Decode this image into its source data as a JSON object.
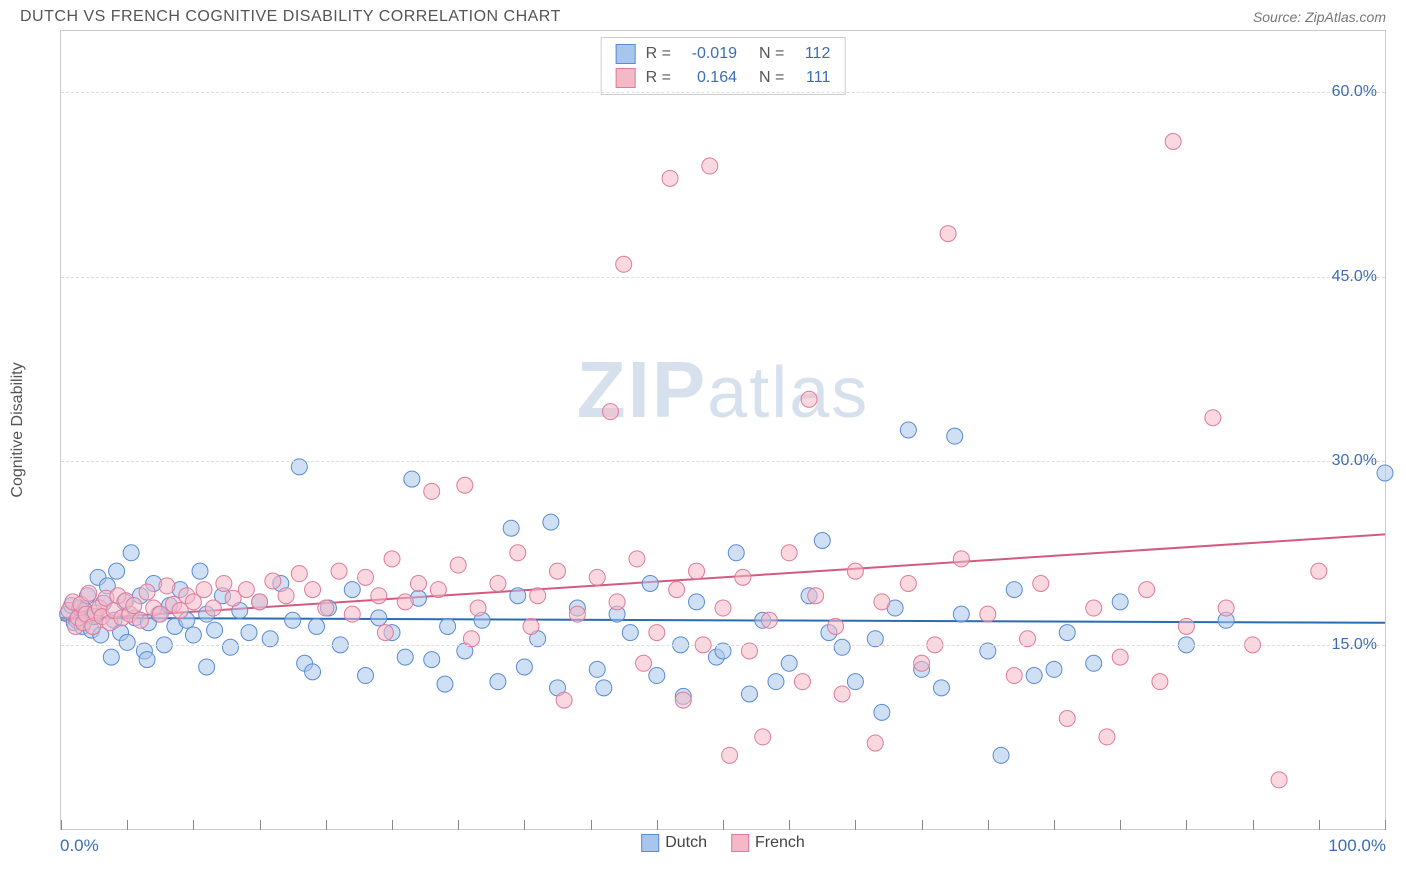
{
  "title": "DUTCH VS FRENCH COGNITIVE DISABILITY CORRELATION CHART",
  "source": "Source: ZipAtlas.com",
  "watermark": "ZIPatlas",
  "y_axis_label": "Cognitive Disability",
  "chart": {
    "type": "scatter",
    "xlim": [
      0,
      100
    ],
    "ylim": [
      0,
      65
    ],
    "x_min_label": "0.0%",
    "x_max_label": "100.0%",
    "x_ticks": [
      0,
      5,
      10,
      15,
      20,
      25,
      30,
      35,
      40,
      45,
      50,
      55,
      60,
      65,
      70,
      75,
      80,
      85,
      90,
      95,
      100
    ],
    "y_gridlines": [
      15,
      30,
      45,
      60
    ],
    "y_tick_labels": [
      "15.0%",
      "30.0%",
      "45.0%",
      "60.0%"
    ],
    "background_color": "#ffffff",
    "grid_color": "#dddddd",
    "marker_radius": 8,
    "marker_opacity": 0.55,
    "trend_line_width": 2,
    "series": [
      {
        "name": "Dutch",
        "fill": "#a8c6eb",
        "stroke": "#5a8bd4",
        "line_color": "#2b6cb0",
        "R": "-0.019",
        "N": "112",
        "trend": {
          "y_at_x0": 17.2,
          "y_at_x100": 16.8
        },
        "points": [
          [
            0.5,
            17.5
          ],
          [
            0.8,
            18.2
          ],
          [
            1.0,
            16.8
          ],
          [
            1.2,
            17.0
          ],
          [
            1.4,
            18.0
          ],
          [
            1.6,
            16.5
          ],
          [
            1.8,
            17.8
          ],
          [
            2.0,
            19.0
          ],
          [
            2.3,
            16.2
          ],
          [
            2.5,
            17.3
          ],
          [
            2.8,
            20.5
          ],
          [
            3.0,
            15.8
          ],
          [
            3.2,
            18.4
          ],
          [
            3.5,
            19.8
          ],
          [
            3.8,
            14.0
          ],
          [
            4.0,
            17.0
          ],
          [
            4.2,
            21.0
          ],
          [
            4.5,
            16.0
          ],
          [
            4.8,
            18.5
          ],
          [
            5.0,
            15.2
          ],
          [
            5.3,
            22.5
          ],
          [
            5.6,
            17.2
          ],
          [
            6.0,
            19.0
          ],
          [
            6.3,
            14.5
          ],
          [
            6.6,
            16.8
          ],
          [
            7.0,
            20.0
          ],
          [
            7.4,
            17.5
          ],
          [
            7.8,
            15.0
          ],
          [
            8.2,
            18.2
          ],
          [
            8.6,
            16.5
          ],
          [
            9.0,
            19.5
          ],
          [
            9.5,
            17.0
          ],
          [
            10.0,
            15.8
          ],
          [
            10.5,
            21.0
          ],
          [
            11.0,
            17.5
          ],
          [
            11.6,
            16.2
          ],
          [
            12.2,
            19.0
          ],
          [
            12.8,
            14.8
          ],
          [
            13.5,
            17.8
          ],
          [
            14.2,
            16.0
          ],
          [
            15.0,
            18.5
          ],
          [
            15.8,
            15.5
          ],
          [
            16.6,
            20.0
          ],
          [
            17.5,
            17.0
          ],
          [
            18.0,
            29.5
          ],
          [
            18.4,
            13.5
          ],
          [
            19.3,
            16.5
          ],
          [
            20.2,
            18.0
          ],
          [
            21.1,
            15.0
          ],
          [
            22.0,
            19.5
          ],
          [
            23.0,
            12.5
          ],
          [
            24.0,
            17.2
          ],
          [
            25.0,
            16.0
          ],
          [
            26.0,
            14.0
          ],
          [
            26.5,
            28.5
          ],
          [
            27.0,
            18.8
          ],
          [
            28.0,
            13.8
          ],
          [
            29.2,
            16.5
          ],
          [
            30.5,
            14.5
          ],
          [
            31.8,
            17.0
          ],
          [
            33.0,
            12.0
          ],
          [
            34.0,
            24.5
          ],
          [
            34.5,
            19.0
          ],
          [
            36.0,
            15.5
          ],
          [
            37.0,
            25.0
          ],
          [
            37.5,
            11.5
          ],
          [
            39.0,
            18.0
          ],
          [
            40.5,
            13.0
          ],
          [
            42.0,
            17.5
          ],
          [
            43.0,
            16.0
          ],
          [
            44.5,
            20.0
          ],
          [
            45.0,
            12.5
          ],
          [
            46.8,
            15.0
          ],
          [
            48.0,
            18.5
          ],
          [
            49.5,
            14.0
          ],
          [
            51.0,
            22.5
          ],
          [
            52.0,
            11.0
          ],
          [
            53.0,
            17.0
          ],
          [
            55.0,
            13.5
          ],
          [
            56.5,
            19.0
          ],
          [
            57.5,
            23.5
          ],
          [
            58.0,
            16.0
          ],
          [
            60.0,
            12.0
          ],
          [
            61.5,
            15.5
          ],
          [
            63.0,
            18.0
          ],
          [
            64.0,
            32.5
          ],
          [
            65.0,
            13.0
          ],
          [
            66.5,
            11.5
          ],
          [
            67.5,
            32.0
          ],
          [
            68.0,
            17.5
          ],
          [
            70.0,
            14.5
          ],
          [
            72.0,
            19.5
          ],
          [
            73.5,
            12.5
          ],
          [
            76.0,
            16.0
          ],
          [
            78.0,
            13.5
          ],
          [
            80.0,
            18.5
          ],
          [
            85.0,
            15.0
          ],
          [
            88.0,
            17.0
          ],
          [
            100.0,
            29.0
          ],
          [
            6.5,
            13.8
          ],
          [
            11.0,
            13.2
          ],
          [
            19.0,
            12.8
          ],
          [
            29.0,
            11.8
          ],
          [
            35.0,
            13.2
          ],
          [
            41.0,
            11.5
          ],
          [
            47.0,
            10.8
          ],
          [
            50.0,
            14.5
          ],
          [
            54.0,
            12.0
          ],
          [
            59.0,
            14.8
          ],
          [
            62.0,
            9.5
          ],
          [
            71.0,
            6.0
          ],
          [
            75.0,
            13.0
          ]
        ]
      },
      {
        "name": "French",
        "fill": "#f4b8c6",
        "stroke": "#e07a9a",
        "line_color": "#d45a7e",
        "R": "0.164",
        "N": "111",
        "trend": {
          "y_at_x0": 17.0,
          "y_at_x100": 24.0
        },
        "points": [
          [
            0.6,
            17.8
          ],
          [
            0.9,
            18.5
          ],
          [
            1.1,
            16.5
          ],
          [
            1.3,
            17.2
          ],
          [
            1.5,
            18.3
          ],
          [
            1.7,
            16.8
          ],
          [
            1.9,
            17.5
          ],
          [
            2.1,
            19.2
          ],
          [
            2.4,
            16.5
          ],
          [
            2.6,
            17.6
          ],
          [
            2.9,
            18.0
          ],
          [
            3.1,
            17.3
          ],
          [
            3.4,
            18.8
          ],
          [
            3.7,
            16.8
          ],
          [
            4.0,
            17.8
          ],
          [
            4.3,
            19.0
          ],
          [
            4.6,
            17.2
          ],
          [
            4.9,
            18.6
          ],
          [
            5.2,
            17.5
          ],
          [
            5.5,
            18.2
          ],
          [
            6.0,
            17.0
          ],
          [
            6.5,
            19.3
          ],
          [
            7.0,
            18.0
          ],
          [
            7.5,
            17.5
          ],
          [
            8.0,
            19.8
          ],
          [
            8.5,
            18.3
          ],
          [
            9.0,
            17.8
          ],
          [
            9.5,
            19.0
          ],
          [
            10.0,
            18.5
          ],
          [
            10.8,
            19.5
          ],
          [
            11.5,
            18.0
          ],
          [
            12.3,
            20.0
          ],
          [
            13.0,
            18.8
          ],
          [
            14.0,
            19.5
          ],
          [
            15.0,
            18.5
          ],
          [
            16.0,
            20.2
          ],
          [
            17.0,
            19.0
          ],
          [
            18.0,
            20.8
          ],
          [
            19.0,
            19.5
          ],
          [
            20.0,
            18.0
          ],
          [
            21.0,
            21.0
          ],
          [
            22.0,
            17.5
          ],
          [
            23.0,
            20.5
          ],
          [
            24.0,
            19.0
          ],
          [
            25.0,
            22.0
          ],
          [
            26.0,
            18.5
          ],
          [
            27.0,
            20.0
          ],
          [
            28.0,
            27.5
          ],
          [
            28.5,
            19.5
          ],
          [
            30.0,
            21.5
          ],
          [
            30.5,
            28.0
          ],
          [
            31.5,
            18.0
          ],
          [
            33.0,
            20.0
          ],
          [
            34.5,
            22.5
          ],
          [
            36.0,
            19.0
          ],
          [
            37.5,
            21.0
          ],
          [
            39.0,
            17.5
          ],
          [
            40.5,
            20.5
          ],
          [
            41.5,
            34.0
          ],
          [
            42.0,
            18.5
          ],
          [
            42.5,
            46.0
          ],
          [
            43.5,
            22.0
          ],
          [
            45.0,
            16.0
          ],
          [
            46.0,
            53.0
          ],
          [
            46.5,
            19.5
          ],
          [
            47.0,
            10.5
          ],
          [
            48.0,
            21.0
          ],
          [
            49.0,
            54.0
          ],
          [
            50.0,
            18.0
          ],
          [
            50.5,
            6.0
          ],
          [
            51.5,
            20.5
          ],
          [
            53.0,
            7.5
          ],
          [
            53.5,
            17.0
          ],
          [
            55.0,
            22.5
          ],
          [
            56.0,
            12.0
          ],
          [
            56.5,
            35.0
          ],
          [
            57.0,
            19.0
          ],
          [
            58.5,
            16.5
          ],
          [
            60.0,
            21.0
          ],
          [
            61.5,
            7.0
          ],
          [
            62.0,
            18.5
          ],
          [
            64.0,
            20.0
          ],
          [
            66.0,
            15.0
          ],
          [
            67.0,
            48.5
          ],
          [
            68.0,
            22.0
          ],
          [
            70.0,
            17.5
          ],
          [
            72.0,
            12.5
          ],
          [
            74.0,
            20.0
          ],
          [
            76.0,
            9.0
          ],
          [
            78.0,
            18.0
          ],
          [
            80.0,
            14.0
          ],
          [
            82.0,
            19.5
          ],
          [
            84.0,
            56.0
          ],
          [
            85.0,
            16.5
          ],
          [
            87.0,
            33.5
          ],
          [
            88.0,
            18.0
          ],
          [
            92.0,
            4.0
          ],
          [
            95.0,
            21.0
          ],
          [
            38.0,
            10.5
          ],
          [
            44.0,
            13.5
          ],
          [
            52.0,
            14.5
          ],
          [
            59.0,
            11.0
          ],
          [
            65.0,
            13.5
          ],
          [
            73.0,
            15.5
          ],
          [
            79.0,
            7.5
          ],
          [
            83.0,
            12.0
          ],
          [
            90.0,
            15.0
          ],
          [
            24.5,
            16.0
          ],
          [
            31.0,
            15.5
          ],
          [
            35.5,
            16.5
          ],
          [
            48.5,
            15.0
          ]
        ]
      }
    ]
  },
  "bottom_legend": [
    {
      "label": "Dutch",
      "fill": "#a8c6eb",
      "stroke": "#5a8bd4"
    },
    {
      "label": "French",
      "fill": "#f4b8c6",
      "stroke": "#e07a9a"
    }
  ]
}
